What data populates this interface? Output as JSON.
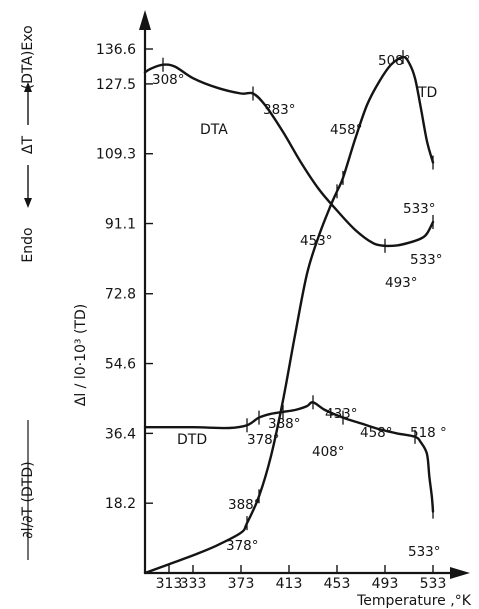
{
  "chart_data": {
    "type": "line",
    "xlabel": "Temperature ,°K",
    "x_ticks": [
      "313",
      "333",
      "373",
      "413",
      "453",
      "493",
      "533"
    ],
    "y_ticks": [
      "136.6",
      "127.5",
      "109.3",
      "91.1",
      "72.8",
      "54.6",
      "36.4",
      "18.2"
    ],
    "ylabel_td": "Δl / l0·10³ (TD)",
    "ylabel_dta": {
      "paren": "(DTA)",
      "endo": "Endo",
      "delta": "ΔT",
      "exo": "Exo"
    },
    "ylabel_dtd": "∂l/∂T (DTD)",
    "xlim": [
      293,
      546
    ],
    "ylim": [
      0,
      147
    ],
    "series": [
      {
        "name": "TD",
        "x": [
          293,
          313,
          333,
          353,
          373,
          378,
          388,
          398,
          408,
          418,
          428,
          438,
          448,
          453,
          458,
          468,
          478,
          488,
          498,
          508,
          513,
          518,
          523,
          528,
          533
        ],
        "y": [
          0,
          2.3,
          4.6,
          7.2,
          10.5,
          13.0,
          20.0,
          30.5,
          45.0,
          62.0,
          78.0,
          88.0,
          96.0,
          99.5,
          103.0,
          113.0,
          122.0,
          128.0,
          132.5,
          134.5,
          133.0,
          129.0,
          121.0,
          112.5,
          107.0
        ]
      },
      {
        "name": "DTA",
        "x": [
          293,
          298,
          308,
          318,
          333,
          353,
          373,
          383,
          393,
          408,
          423,
          438,
          453,
          468,
          483,
          493,
          503,
          513,
          523,
          528,
          533
        ],
        "y": [
          130.5,
          131.5,
          132.5,
          132.0,
          129.0,
          126.5,
          125.0,
          125.0,
          122.0,
          115.0,
          107.0,
          100.0,
          94.5,
          89.5,
          86.0,
          85.3,
          85.4,
          86.1,
          87.2,
          88.5,
          91.5
        ]
      },
      {
        "name": "DTD",
        "x": [
          293,
          333,
          363,
          378,
          388,
          398,
          408,
          418,
          428,
          433,
          443,
          458,
          473,
          488,
          503,
          518,
          523,
          528,
          530,
          532,
          533
        ],
        "y": [
          38.0,
          38.0,
          37.8,
          38.5,
          40.5,
          41.5,
          42.0,
          42.5,
          43.5,
          44.5,
          42.5,
          40.5,
          39.0,
          37.5,
          36.4,
          35.5,
          34.0,
          31.0,
          25.0,
          20.0,
          16.0
        ]
      }
    ],
    "annotations": [
      {
        "text": "308°",
        "x": 308,
        "y": 132.5
      },
      {
        "text": "383°",
        "x": 383,
        "y": 125.0
      },
      {
        "text": "458°",
        "x": 458,
        "y": 103.0
      },
      {
        "text": "508°",
        "x": 508,
        "y": 134.5
      },
      {
        "text": "533°",
        "x": 533,
        "y": 107.0
      },
      {
        "text": "453°",
        "x": 453,
        "y": 99.5
      },
      {
        "text": "493°",
        "x": 493,
        "y": 85.3
      },
      {
        "text": "533°",
        "x": 533,
        "y": 91.5
      },
      {
        "text": "378°",
        "x": 378,
        "y": 38.5
      },
      {
        "text": "388°",
        "x": 388,
        "y": 40.5
      },
      {
        "text": "433°",
        "x": 433,
        "y": 44.5
      },
      {
        "text": "408°",
        "x": 408,
        "y": 42.0
      },
      {
        "text": "458°",
        "x": 458,
        "y": 40.5
      },
      {
        "text": "518 °",
        "x": 518,
        "y": 35.5
      },
      {
        "text": "388°",
        "x": 388,
        "y": 20.0
      },
      {
        "text": "378°",
        "x": 378,
        "y": 13.0
      },
      {
        "text": "533°",
        "x": 533,
        "y": 16.0
      }
    ]
  }
}
